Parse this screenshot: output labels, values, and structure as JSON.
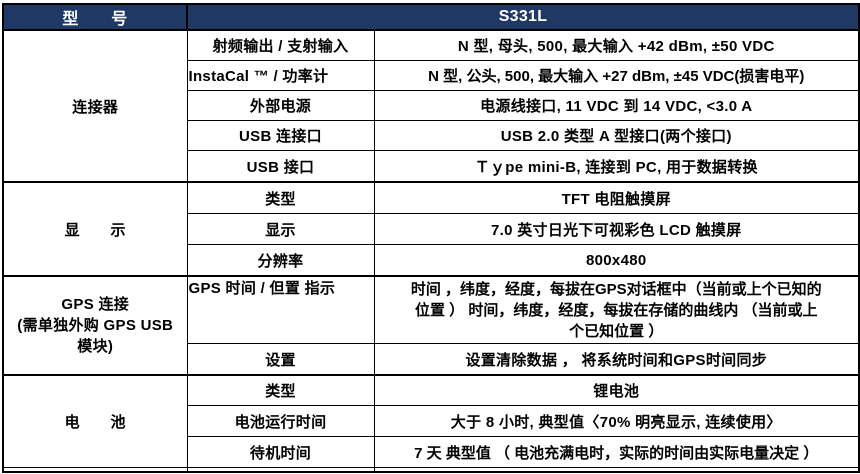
{
  "colors": {
    "header_bg": "#1F3864",
    "header_text": "#FFFFFF",
    "border": "#000000",
    "body_text": "#000000"
  },
  "header": {
    "model_label": "型　　号",
    "model_value": "S331L"
  },
  "sections": [
    {
      "name": "连接器",
      "rows": [
        {
          "label": "射频输出 / 支射输入",
          "value": "N 型, 母头, 500, 最大输入 +42 dBm,  ±50 VDC"
        },
        {
          "label": "InstaCal ™ / 功率计",
          "value": "N 型, 公头, 500, 最大输入 +27 dBm,  ±45 VDC(损害电平)"
        },
        {
          "label": "外部电源",
          "value": "电源线接口, 11 VDC 到 14 VDC, <3.0 A"
        },
        {
          "label": "USB 连接口",
          "value": "USB 2.0 类型 A 型接口(两个接口)"
        },
        {
          "label": "USB 接口",
          "value": "Ｔｙpe mini-B, 连接到 PC, 用于数据转换"
        }
      ]
    },
    {
      "name": "显　　示",
      "rows": [
        {
          "label": "类型",
          "value": "TFT 电阻触摸屏"
        },
        {
          "label": "显示",
          "value": "7.0 英寸日光下可视彩色 LCD 触摸屏"
        },
        {
          "label": "分辨率",
          "value": "800x480"
        }
      ]
    },
    {
      "name": "GPS 连接\n(需单独外购 GPS USB\n模块)",
      "rows": [
        {
          "label": "GPS 时间 / 但置 指示",
          "value": "时间 ，纬度，经度，每拔在GPS对话框中（当前或上个已知的\n位置 ） 时间，纬度，经度，每拔在存储的曲线内 （当前或上\n个已知位置 ）"
        },
        {
          "label": "设置",
          "value": "设置清除数据 ， 将系统时间和GPS时间同步"
        }
      ]
    },
    {
      "name": "电　　池",
      "rows": [
        {
          "label": "类型",
          "value": "锂电池"
        },
        {
          "label": "电池运行时间",
          "value": "大于 8 小时, 典型值〈70% 明亮显示, 连续使用〉"
        },
        {
          "label": "待机时间",
          "value": "7 天 典型值 （ 电池充满电时，实际的时间由实际电量决定 ）"
        }
      ]
    }
  ]
}
